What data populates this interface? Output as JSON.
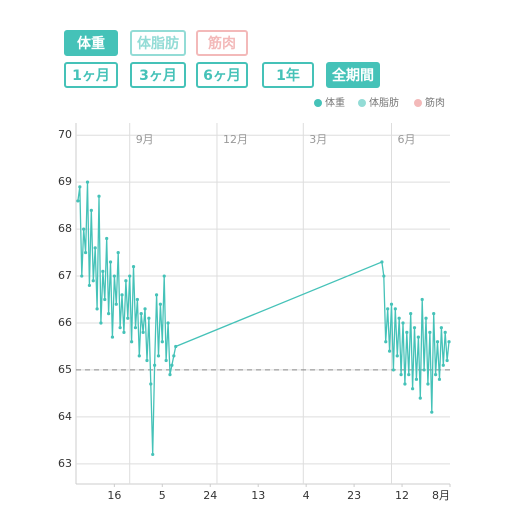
{
  "controls": {
    "metrics": [
      {
        "label": "体重",
        "selected": true
      },
      {
        "label": "体脂肪",
        "selected": false
      },
      {
        "label": "筋肉",
        "selected": false
      }
    ],
    "ranges": [
      {
        "label": "1ヶ月",
        "selected": false
      },
      {
        "label": "3ヶ月",
        "selected": false
      },
      {
        "label": "6ヶ月",
        "selected": false
      },
      {
        "label": "1年",
        "selected": false
      },
      {
        "label": "全期間",
        "selected": true
      }
    ]
  },
  "chart_data": {
    "type": "line",
    "legend": [
      {
        "name": "体重",
        "color": "#45c2b8"
      },
      {
        "name": "体脂肪",
        "color": "#93dcd6"
      },
      {
        "name": "筋肉",
        "color": "#f3b9b9"
      }
    ],
    "x": [
      -54,
      -52,
      -50,
      -48,
      -46,
      -44,
      -42,
      -40,
      -38,
      -36,
      -34,
      -32,
      -30,
      -28,
      -26,
      -24,
      -22,
      -20,
      -18,
      -16,
      -14,
      -12,
      -10,
      -8,
      -6,
      -4,
      -2,
      0,
      2,
      4,
      6,
      8,
      10,
      12,
      14,
      16,
      18,
      20,
      22,
      24,
      26,
      28,
      30,
      32,
      34,
      36,
      38,
      40,
      42,
      44,
      46,
      48,
      263,
      265,
      267,
      269,
      271,
      273,
      275,
      277,
      279,
      281,
      283,
      285,
      287,
      289,
      291,
      293,
      295,
      297,
      299,
      301,
      303,
      305,
      307,
      309,
      311,
      313,
      315,
      317,
      319,
      321,
      323,
      325,
      327,
      329,
      331,
      333
    ],
    "series": [
      {
        "color": "#45c2b8",
        "values": [
          68.6,
          68.9,
          67.0,
          68.0,
          67.5,
          69.0,
          66.8,
          68.4,
          66.9,
          67.6,
          66.3,
          68.7,
          66.0,
          67.1,
          66.5,
          67.8,
          66.2,
          67.3,
          65.7,
          67.0,
          66.4,
          67.5,
          65.9,
          66.6,
          65.8,
          66.9,
          66.1,
          67.0,
          65.6,
          67.2,
          65.9,
          66.5,
          65.3,
          66.2,
          65.8,
          66.3,
          65.2,
          66.1,
          64.7,
          63.2,
          65.1,
          66.6,
          65.3,
          66.4,
          65.6,
          67.0,
          65.2,
          66.0,
          64.9,
          65.1,
          65.3,
          65.5,
          67.3,
          67.0,
          65.6,
          66.3,
          65.4,
          66.4,
          65.0,
          66.3,
          65.3,
          66.1,
          64.9,
          66.0,
          64.7,
          65.8,
          64.9,
          66.2,
          64.6,
          65.9,
          64.8,
          65.7,
          64.4,
          66.5,
          65.0,
          66.1,
          64.7,
          65.8,
          64.1,
          66.2,
          64.9,
          65.6,
          64.8,
          65.9,
          65.1,
          65.8,
          65.2,
          65.6
        ]
      }
    ],
    "target": 65,
    "xlim": [
      -56,
      334
    ],
    "xticks": [
      {
        "value": -16,
        "label": "16"
      },
      {
        "value": 34,
        "label": "5"
      },
      {
        "value": 84,
        "label": "24"
      },
      {
        "value": 134,
        "label": "13"
      },
      {
        "value": 184,
        "label": "4"
      },
      {
        "value": 234,
        "label": "23"
      },
      {
        "value": 284,
        "label": "12"
      },
      {
        "value": 334,
        "label": "8月"
      }
    ],
    "month_grid": [
      {
        "value": 0,
        "label": "9月"
      },
      {
        "value": 91,
        "label": "12月"
      },
      {
        "value": 181,
        "label": "3月"
      },
      {
        "value": 273,
        "label": "6月"
      }
    ],
    "ylim": [
      62.57,
      70.26
    ],
    "yticks": [
      63,
      64,
      65,
      66,
      67,
      68,
      69,
      70
    ],
    "grid": true
  }
}
